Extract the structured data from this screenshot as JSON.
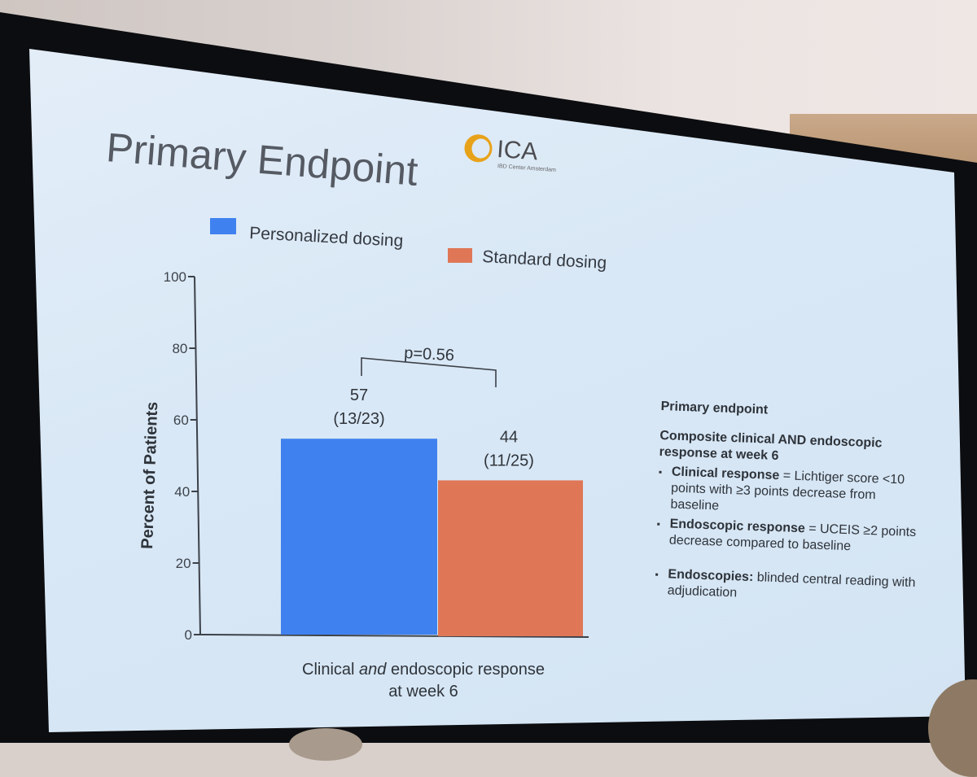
{
  "slide": {
    "title": "Primary Endpoint",
    "logo": {
      "name": "ICA",
      "subtitle": "IBD Center Amsterdam"
    }
  },
  "chart_data": {
    "type": "bar",
    "categories": [
      "Clinical and endoscopic response at week 6"
    ],
    "category_label": {
      "line1_before": "Clinical ",
      "line1_italic": "and",
      "line1_after": " endoscopic response",
      "line2": "at week 6"
    },
    "series": [
      {
        "name": "Personalized dosing",
        "values": [
          57
        ],
        "label_value": "57",
        "label_fraction": "(13/23)",
        "color": "#3f82ef"
      },
      {
        "name": "Standard dosing",
        "values": [
          44
        ],
        "label_value": "44",
        "label_fraction": "(11/25)",
        "color": "#df7756"
      }
    ],
    "ylabel": "Percent of Patients",
    "ylim": [
      0,
      100
    ],
    "yticks": [
      "0",
      "20",
      "40",
      "60",
      "80",
      "100"
    ],
    "annotation": "p=0.56",
    "legend_position": "top"
  },
  "notes": {
    "heading": "Primary endpoint",
    "subheading": "Composite clinical AND endoscopic response at week 6",
    "bullets": [
      {
        "bold": "Clinical response",
        "text": " = Lichtiger score <10 points with ≥3 points decrease from baseline"
      },
      {
        "bold": "Endoscopic response",
        "text": " = UCEIS ≥2 points decrease compared to baseline"
      },
      {
        "bold": "Endoscopies:",
        "text": " blinded central reading with adjudication"
      }
    ]
  }
}
